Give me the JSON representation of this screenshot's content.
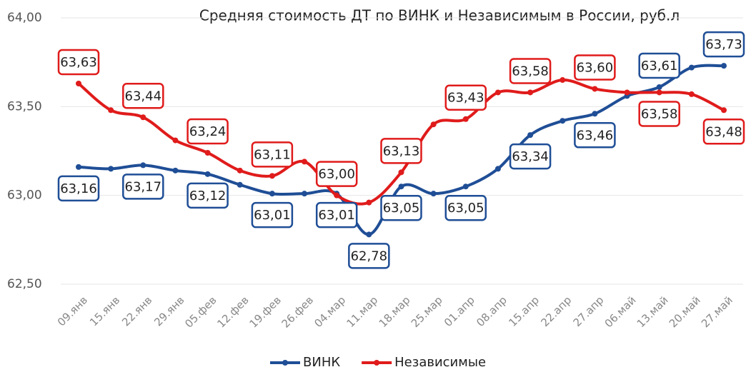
{
  "chart_data": {
    "type": "line",
    "title": "Средняя стоимость ДТ по ВИНК и Независимым в России, руб.л",
    "categories": [
      "09.янв",
      "15.янв",
      "22.янв",
      "29.янв",
      "05.фев",
      "12.фев",
      "19.фев",
      "26.фев",
      "04.мар",
      "11.мар",
      "18.мар",
      "25.мар",
      "01.апр",
      "08.апр",
      "15.апр",
      "22.апр",
      "27.апр",
      "06.май",
      "13.май",
      "20.май",
      "27.май"
    ],
    "series": [
      {
        "name": "ВИНК",
        "color": "#1f4e96",
        "values": [
          63.16,
          63.15,
          63.17,
          63.14,
          63.12,
          63.06,
          63.01,
          63.01,
          63.01,
          62.78,
          63.05,
          63.01,
          63.05,
          63.15,
          63.34,
          63.42,
          63.46,
          63.56,
          63.61,
          63.72,
          63.73
        ],
        "value_labels": [
          "63,16",
          null,
          "63,17",
          null,
          "63,12",
          null,
          "63,01",
          null,
          "63,01",
          "62,78",
          "63,05",
          null,
          "63,05",
          null,
          "63,34",
          null,
          "63,46",
          null,
          "63,61",
          null,
          "63,73"
        ]
      },
      {
        "name": "Независимые",
        "color": "#e01b1b",
        "values": [
          63.63,
          63.48,
          63.44,
          63.31,
          63.24,
          63.14,
          63.11,
          63.19,
          63.0,
          62.96,
          63.13,
          63.4,
          63.43,
          63.58,
          63.58,
          63.65,
          63.6,
          63.58,
          63.58,
          63.57,
          63.48
        ],
        "value_labels": [
          "63,63",
          null,
          "63,44",
          null,
          "63,24",
          null,
          "63,11",
          null,
          "63,00",
          null,
          "63,13",
          null,
          "63,43",
          null,
          "63,58",
          null,
          "63,60",
          null,
          "63,58",
          null,
          "63,48"
        ]
      }
    ],
    "ylim": [
      62.5,
      64
    ],
    "yticks": [
      {
        "value": 62.5,
        "label": "62,50"
      },
      {
        "value": 63,
        "label": "63,00"
      },
      {
        "value": 63.5,
        "label": "63,50"
      },
      {
        "value": 64,
        "label": "64,00"
      }
    ],
    "grid": true,
    "legend": "bottom"
  }
}
